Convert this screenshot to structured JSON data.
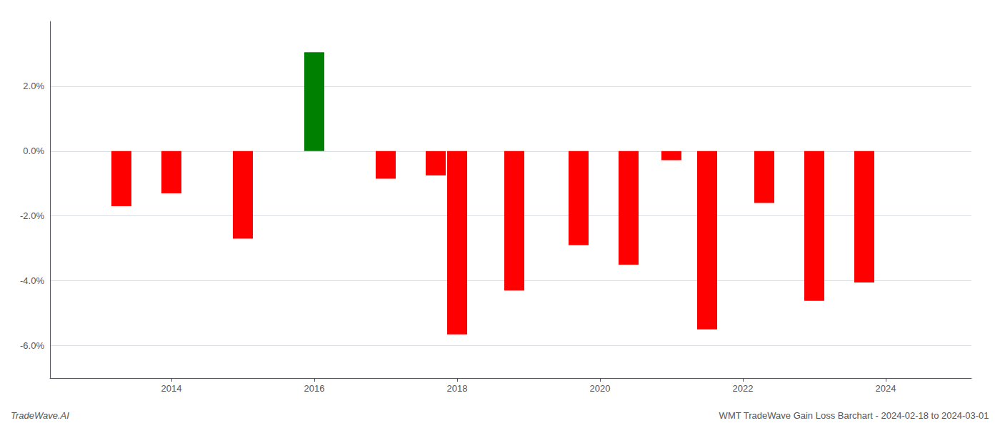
{
  "chart_data": {
    "type": "bar",
    "title": "WMT TradeWave Gain Loss Barchart - 2024-02-18 to 2024-03-01",
    "annotations": [
      "TradeWave.AI"
    ],
    "x": [
      2013.3,
      2014.0,
      2015.0,
      2016.0,
      2017.0,
      2017.7,
      2018.0,
      2018.8,
      2019.7,
      2020.4,
      2021.0,
      2021.5,
      2022.3,
      2023.0,
      2023.7
    ],
    "values": [
      -1.7,
      -1.3,
      -2.7,
      3.05,
      -0.85,
      -0.75,
      -5.65,
      -4.3,
      -2.9,
      -3.5,
      -0.28,
      -5.5,
      -1.6,
      -4.62,
      -4.05
    ],
    "colors": [
      "#ff0000",
      "#ff0000",
      "#ff0000",
      "#008000",
      "#ff0000",
      "#ff0000",
      "#ff0000",
      "#ff0000",
      "#ff0000",
      "#ff0000",
      "#ff0000",
      "#ff0000",
      "#ff0000",
      "#ff0000",
      "#ff0000"
    ],
    "xlim": [
      2012.3,
      2025.2
    ],
    "xticks": [
      2014,
      2016,
      2018,
      2020,
      2022,
      2024
    ],
    "ylim": [
      -7.0,
      4.0
    ],
    "yticks": [
      {
        "value": -6.0,
        "label": "-6.0%"
      },
      {
        "value": -4.0,
        "label": "-4.0%"
      },
      {
        "value": -2.0,
        "label": "-2.0%"
      },
      {
        "value": 0.0,
        "label": "0.0%"
      },
      {
        "value": 2.0,
        "label": "2.0%"
      }
    ],
    "grid": true
  }
}
